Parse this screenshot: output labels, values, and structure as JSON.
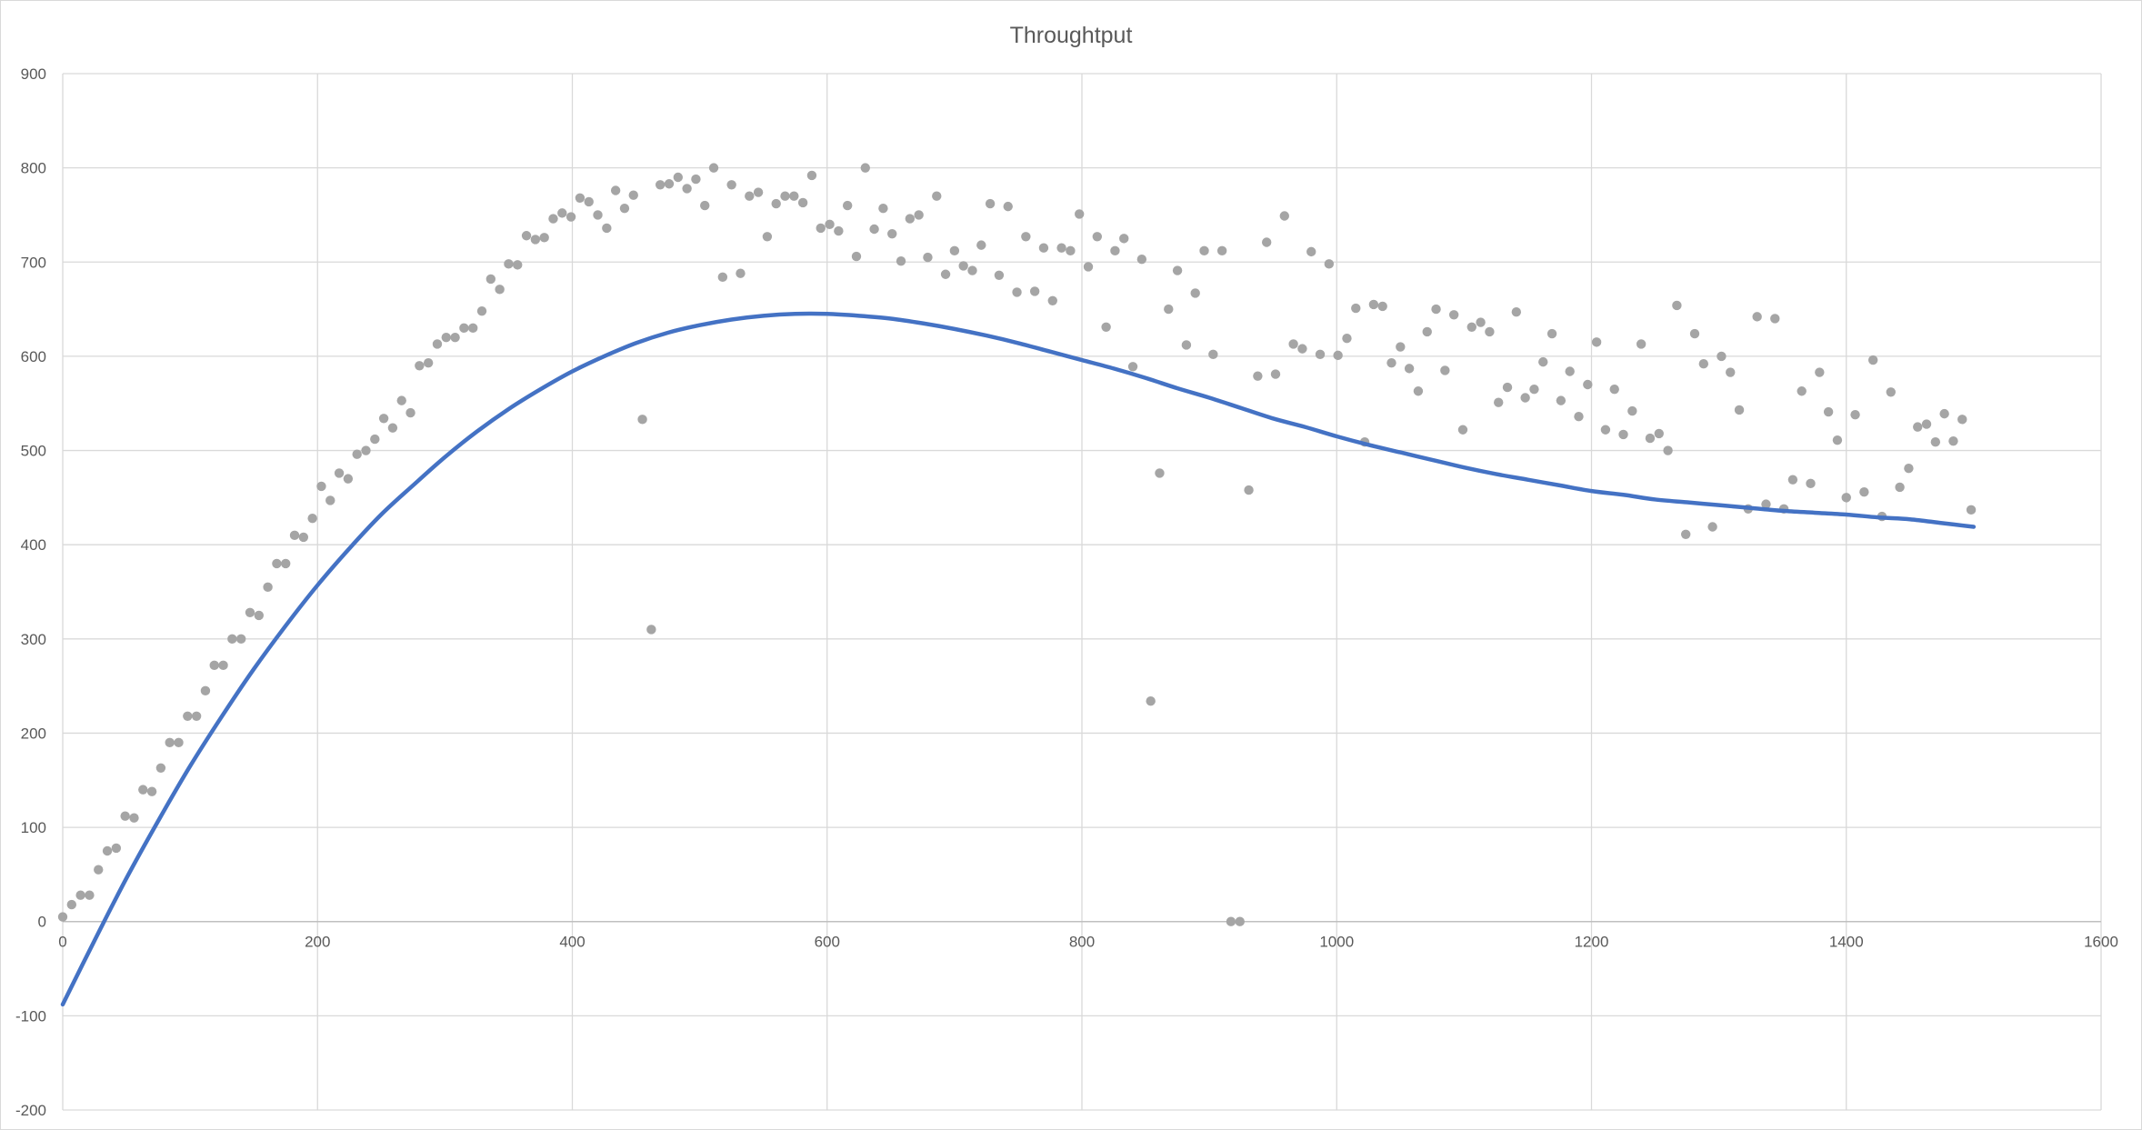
{
  "chart_data": {
    "type": "scatter",
    "title": "Throughtput",
    "xlabel": "",
    "ylabel": "",
    "xlim": [
      0,
      1600
    ],
    "ylim": [
      -200,
      900
    ],
    "x_ticks": [
      0,
      200,
      400,
      600,
      800,
      1000,
      1200,
      1400,
      1600
    ],
    "y_ticks": [
      -200,
      -100,
      0,
      100,
      200,
      300,
      400,
      500,
      600,
      700,
      800,
      900
    ],
    "x_tick_labels": [
      "0",
      "200",
      "400",
      "600",
      "800",
      "1000",
      "1200",
      "1400",
      "1600"
    ],
    "y_tick_labels": [
      "-200",
      "-100",
      "0",
      "100",
      "200",
      "300",
      "400",
      "500",
      "600",
      "700",
      "800",
      "900"
    ],
    "grid": true,
    "legend": "none",
    "series": [
      {
        "kind": "scatter",
        "color": "#a5a5a5",
        "points": [
          [
            0,
            5
          ],
          [
            7,
            18
          ],
          [
            14,
            28
          ],
          [
            21,
            28
          ],
          [
            28,
            55
          ],
          [
            35,
            75
          ],
          [
            42,
            78
          ],
          [
            49,
            112
          ],
          [
            56,
            110
          ],
          [
            63,
            140
          ],
          [
            70,
            138
          ],
          [
            77,
            163
          ],
          [
            84,
            190
          ],
          [
            91,
            190
          ],
          [
            98,
            218
          ],
          [
            105,
            218
          ],
          [
            112,
            245
          ],
          [
            119,
            272
          ],
          [
            126,
            272
          ],
          [
            133,
            300
          ],
          [
            140,
            300
          ],
          [
            147,
            328
          ],
          [
            154,
            325
          ],
          [
            161,
            355
          ],
          [
            168,
            380
          ],
          [
            175,
            380
          ],
          [
            182,
            410
          ],
          [
            189,
            408
          ],
          [
            196,
            428
          ],
          [
            203,
            462
          ],
          [
            210,
            447
          ],
          [
            217,
            476
          ],
          [
            224,
            470
          ],
          [
            231,
            496
          ],
          [
            238,
            500
          ],
          [
            245,
            512
          ],
          [
            252,
            534
          ],
          [
            259,
            524
          ],
          [
            266,
            553
          ],
          [
            273,
            540
          ],
          [
            280,
            590
          ],
          [
            287,
            593
          ],
          [
            294,
            613
          ],
          [
            301,
            620
          ],
          [
            308,
            620
          ],
          [
            315,
            630
          ],
          [
            322,
            630
          ],
          [
            329,
            648
          ],
          [
            336,
            682
          ],
          [
            343,
            671
          ],
          [
            350,
            698
          ],
          [
            357,
            697
          ],
          [
            364,
            728
          ],
          [
            371,
            724
          ],
          [
            378,
            726
          ],
          [
            385,
            746
          ],
          [
            392,
            752
          ],
          [
            399,
            748
          ],
          [
            406,
            768
          ],
          [
            413,
            764
          ],
          [
            420,
            750
          ],
          [
            427,
            736
          ],
          [
            434,
            776
          ],
          [
            441,
            757
          ],
          [
            448,
            771
          ],
          [
            455,
            533
          ],
          [
            462,
            310
          ],
          [
            469,
            782
          ],
          [
            476,
            783
          ],
          [
            483,
            790
          ],
          [
            490,
            778
          ],
          [
            497,
            788
          ],
          [
            504,
            760
          ],
          [
            511,
            800
          ],
          [
            518,
            684
          ],
          [
            525,
            782
          ],
          [
            532,
            688
          ],
          [
            539,
            770
          ],
          [
            546,
            774
          ],
          [
            553,
            727
          ],
          [
            560,
            762
          ],
          [
            567,
            770
          ],
          [
            574,
            770
          ],
          [
            581,
            763
          ],
          [
            588,
            792
          ],
          [
            595,
            736
          ],
          [
            602,
            740
          ],
          [
            609,
            733
          ],
          [
            616,
            760
          ],
          [
            623,
            706
          ],
          [
            630,
            800
          ],
          [
            637,
            735
          ],
          [
            644,
            757
          ],
          [
            651,
            730
          ],
          [
            658,
            701
          ],
          [
            665,
            746
          ],
          [
            672,
            750
          ],
          [
            679,
            705
          ],
          [
            686,
            770
          ],
          [
            693,
            687
          ],
          [
            700,
            712
          ],
          [
            707,
            696
          ],
          [
            714,
            691
          ],
          [
            721,
            718
          ],
          [
            728,
            762
          ],
          [
            735,
            686
          ],
          [
            742,
            759
          ],
          [
            749,
            668
          ],
          [
            756,
            727
          ],
          [
            763,
            669
          ],
          [
            770,
            715
          ],
          [
            777,
            659
          ],
          [
            784,
            715
          ],
          [
            791,
            712
          ],
          [
            798,
            751
          ],
          [
            805,
            695
          ],
          [
            812,
            727
          ],
          [
            819,
            631
          ],
          [
            826,
            712
          ],
          [
            833,
            725
          ],
          [
            840,
            589
          ],
          [
            847,
            703
          ],
          [
            854,
            234
          ],
          [
            861,
            476
          ],
          [
            868,
            650
          ],
          [
            875,
            691
          ],
          [
            882,
            612
          ],
          [
            889,
            667
          ],
          [
            896,
            712
          ],
          [
            903,
            602
          ],
          [
            910,
            712
          ],
          [
            917,
            0
          ],
          [
            924,
            0
          ],
          [
            931,
            458
          ],
          [
            938,
            579
          ],
          [
            945,
            721
          ],
          [
            952,
            581
          ],
          [
            959,
            749
          ],
          [
            966,
            613
          ],
          [
            973,
            608
          ],
          [
            980,
            711
          ],
          [
            987,
            602
          ],
          [
            994,
            698
          ],
          [
            1001,
            601
          ],
          [
            1008,
            619
          ],
          [
            1015,
            651
          ],
          [
            1022,
            509
          ],
          [
            1029,
            655
          ],
          [
            1036,
            653
          ],
          [
            1043,
            593
          ],
          [
            1050,
            610
          ],
          [
            1057,
            587
          ],
          [
            1064,
            563
          ],
          [
            1071,
            626
          ],
          [
            1078,
            650
          ],
          [
            1085,
            585
          ],
          [
            1092,
            644
          ],
          [
            1099,
            522
          ],
          [
            1106,
            631
          ],
          [
            1113,
            636
          ],
          [
            1120,
            626
          ],
          [
            1127,
            551
          ],
          [
            1134,
            567
          ],
          [
            1141,
            647
          ],
          [
            1148,
            556
          ],
          [
            1155,
            565
          ],
          [
            1162,
            594
          ],
          [
            1169,
            624
          ],
          [
            1176,
            553
          ],
          [
            1183,
            584
          ],
          [
            1190,
            536
          ],
          [
            1197,
            570
          ],
          [
            1204,
            615
          ],
          [
            1211,
            522
          ],
          [
            1218,
            565
          ],
          [
            1225,
            517
          ],
          [
            1232,
            542
          ],
          [
            1239,
            613
          ],
          [
            1246,
            513
          ],
          [
            1253,
            518
          ],
          [
            1260,
            500
          ],
          [
            1267,
            654
          ],
          [
            1274,
            411
          ],
          [
            1281,
            624
          ],
          [
            1288,
            592
          ],
          [
            1295,
            419
          ],
          [
            1302,
            600
          ],
          [
            1309,
            583
          ],
          [
            1316,
            543
          ],
          [
            1323,
            438
          ],
          [
            1330,
            642
          ],
          [
            1337,
            443
          ],
          [
            1344,
            640
          ],
          [
            1351,
            438
          ],
          [
            1358,
            469
          ],
          [
            1365,
            563
          ],
          [
            1372,
            465
          ],
          [
            1379,
            583
          ],
          [
            1386,
            541
          ],
          [
            1393,
            511
          ],
          [
            1400,
            450
          ],
          [
            1407,
            538
          ],
          [
            1414,
            456
          ],
          [
            1421,
            596
          ],
          [
            1428,
            430
          ],
          [
            1435,
            562
          ],
          [
            1442,
            461
          ],
          [
            1449,
            481
          ],
          [
            1456,
            525
          ],
          [
            1463,
            528
          ],
          [
            1470,
            509
          ],
          [
            1477,
            539
          ],
          [
            1484,
            510
          ],
          [
            1491,
            533
          ],
          [
            1498,
            437
          ]
        ]
      },
      {
        "kind": "trendline",
        "color": "#4472c4",
        "points": [
          [
            0,
            -88
          ],
          [
            25,
            -20
          ],
          [
            50,
            46
          ],
          [
            75,
            107
          ],
          [
            100,
            165
          ],
          [
            125,
            218
          ],
          [
            150,
            268
          ],
          [
            175,
            314
          ],
          [
            200,
            357
          ],
          [
            225,
            396
          ],
          [
            250,
            432
          ],
          [
            275,
            463
          ],
          [
            300,
            493
          ],
          [
            325,
            520
          ],
          [
            350,
            544
          ],
          [
            375,
            565
          ],
          [
            400,
            584
          ],
          [
            425,
            600
          ],
          [
            450,
            614
          ],
          [
            475,
            625
          ],
          [
            500,
            633
          ],
          [
            525,
            639
          ],
          [
            550,
            643
          ],
          [
            575,
            645
          ],
          [
            600,
            645
          ],
          [
            625,
            643
          ],
          [
            650,
            640
          ],
          [
            675,
            635
          ],
          [
            700,
            629
          ],
          [
            725,
            622
          ],
          [
            750,
            614
          ],
          [
            775,
            605
          ],
          [
            800,
            596
          ],
          [
            825,
            587
          ],
          [
            850,
            577
          ],
          [
            875,
            566
          ],
          [
            900,
            556
          ],
          [
            925,
            545
          ],
          [
            950,
            534
          ],
          [
            975,
            525
          ],
          [
            1000,
            515
          ],
          [
            1025,
            506
          ],
          [
            1050,
            498
          ],
          [
            1075,
            490
          ],
          [
            1100,
            482
          ],
          [
            1125,
            475
          ],
          [
            1150,
            469
          ],
          [
            1175,
            463
          ],
          [
            1200,
            457
          ],
          [
            1225,
            453
          ],
          [
            1250,
            448
          ],
          [
            1275,
            445
          ],
          [
            1300,
            442
          ],
          [
            1325,
            439
          ],
          [
            1350,
            436
          ],
          [
            1375,
            434
          ],
          [
            1400,
            432
          ],
          [
            1425,
            429
          ],
          [
            1450,
            427
          ],
          [
            1475,
            423
          ],
          [
            1500,
            419
          ]
        ]
      }
    ]
  }
}
